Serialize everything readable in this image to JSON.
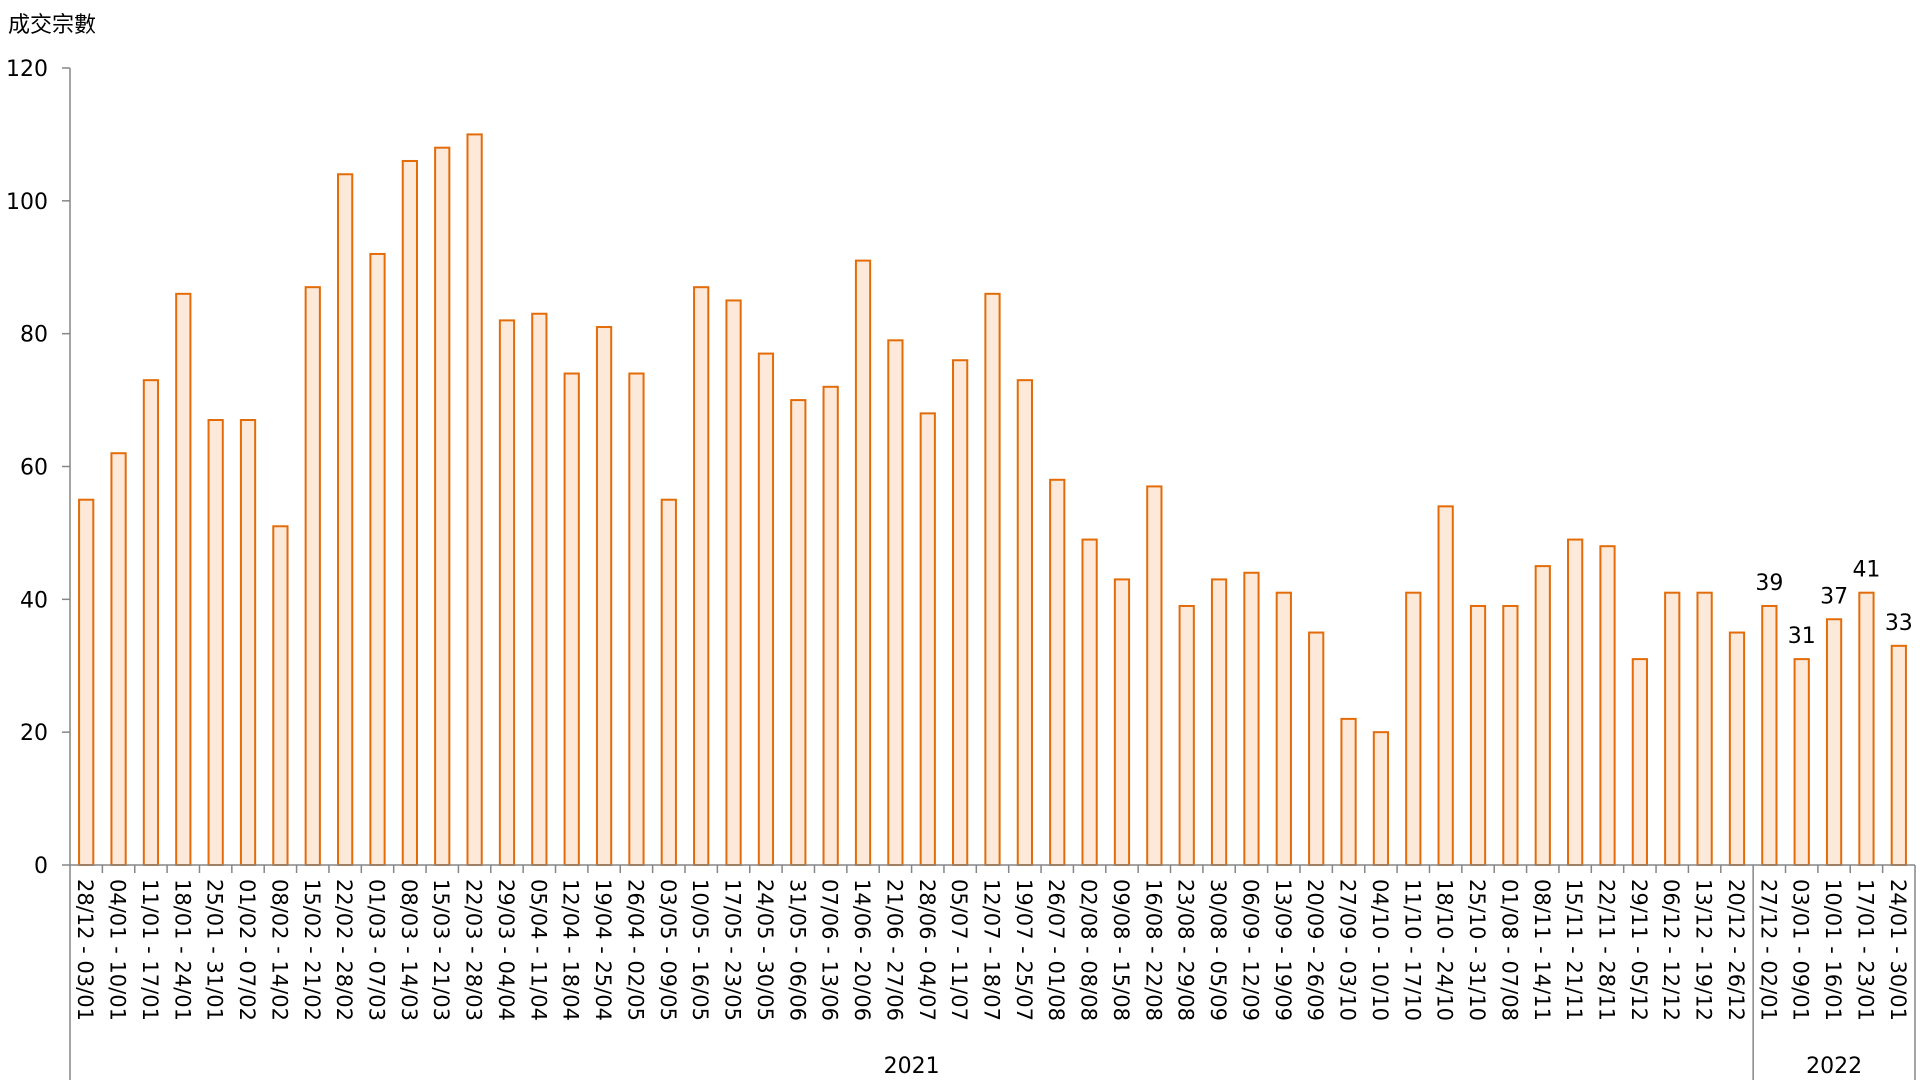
{
  "chart_data": {
    "type": "bar",
    "ylabel": "成交宗數",
    "ylim": [
      0,
      120
    ],
    "yticks": [
      0,
      20,
      40,
      60,
      80,
      100,
      120
    ],
    "grid": false,
    "bar_fill": "#fde9d9",
    "bar_stroke": "#e36c09",
    "categories": [
      "28/12 - 03/01",
      "04/01 - 10/01",
      "11/01 - 17/01",
      "18/01 - 24/01",
      "25/01 - 31/01",
      "01/02 - 07/02",
      "08/02 - 14/02",
      "15/02 - 21/02",
      "22/02 - 28/02",
      "01/03 - 07/03",
      "08/03 - 14/03",
      "15/03 - 21/03",
      "22/03 - 28/03",
      "29/03 - 04/04",
      "05/04 - 11/04",
      "12/04 - 18/04",
      "19/04 - 25/04",
      "26/04 - 02/05",
      "03/05 - 09/05",
      "10/05 - 16/05",
      "17/05 - 23/05",
      "24/05 - 30/05",
      "31/05 - 06/06",
      "07/06 - 13/06",
      "14/06 - 20/06",
      "21/06 - 27/06",
      "28/06 - 04/07",
      "05/07 - 11/07",
      "12/07 - 18/07",
      "19/07 - 25/07",
      "26/07 - 01/08",
      "02/08 - 08/08",
      "09/08 - 15/08",
      "16/08 - 22/08",
      "23/08 - 29/08",
      "30/08 - 05/09",
      "06/09 - 12/09",
      "13/09 - 19/09",
      "20/09 - 26/09",
      "27/09 - 03/10",
      "04/10 - 10/10",
      "11/10 - 17/10",
      "18/10 - 24/10",
      "25/10 - 31/10",
      "01/08 - 07/08",
      "08/11 - 14/11",
      "15/11 - 21/11",
      "22/11 - 28/11",
      "29/11 - 05/12",
      "06/12 - 12/12",
      "13/12 - 19/12",
      "20/12 - 26/12",
      "27/12 - 02/01",
      "03/01 - 09/01",
      "10/01 - 16/01",
      "17/01 - 23/01",
      "24/01 - 30/01"
    ],
    "values": [
      55,
      62,
      73,
      86,
      67,
      67,
      51,
      87,
      104,
      92,
      106,
      108,
      110,
      82,
      83,
      74,
      81,
      74,
      55,
      87,
      85,
      77,
      70,
      72,
      91,
      79,
      68,
      76,
      86,
      73,
      58,
      49,
      43,
      57,
      39,
      43,
      44,
      41,
      35,
      22,
      20,
      41,
      54,
      39,
      39,
      45,
      49,
      48,
      31,
      41,
      41,
      35,
      39,
      31,
      37,
      41,
      33
    ],
    "data_labels": [
      {
        "index": 52,
        "text": "39"
      },
      {
        "index": 53,
        "text": "31"
      },
      {
        "index": 54,
        "text": "37"
      },
      {
        "index": 55,
        "text": "41"
      },
      {
        "index": 56,
        "text": "33"
      }
    ],
    "year_groups": [
      {
        "label": "2021",
        "start": 0,
        "end": 51
      },
      {
        "label": "2022",
        "start": 52,
        "end": 56
      }
    ]
  }
}
